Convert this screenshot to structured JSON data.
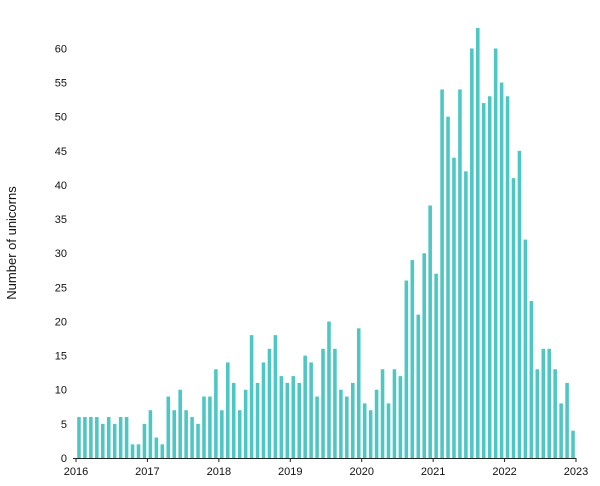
{
  "chart_data": {
    "type": "bar",
    "title": "",
    "xlabel": "",
    "ylabel": "Number of unicorns",
    "ylim": [
      0,
      63
    ],
    "yticks": [
      0,
      5,
      10,
      15,
      20,
      25,
      30,
      35,
      40,
      45,
      50,
      55,
      60
    ],
    "xticks": [
      "2016",
      "2017",
      "2018",
      "2019",
      "2020",
      "2021",
      "2022",
      "2023"
    ],
    "grid": false,
    "legend": "none",
    "bar_color": "#4cc7c3",
    "series": [
      {
        "values": [
          6,
          6,
          6,
          6,
          5,
          6,
          5,
          6,
          6,
          2,
          2,
          5,
          7,
          3,
          2,
          9,
          7,
          10,
          7,
          6,
          5,
          9,
          9,
          13,
          7,
          14,
          11,
          7,
          10,
          18,
          11,
          14,
          16,
          18,
          12,
          11,
          12,
          11,
          15,
          14,
          9,
          16,
          20,
          16,
          10,
          9,
          11,
          19,
          8,
          7,
          10,
          13,
          8,
          13,
          12,
          26,
          29,
          21,
          30,
          37,
          27,
          54,
          50,
          44,
          54,
          42,
          60,
          63,
          52,
          53,
          60,
          55,
          53,
          41,
          45,
          32,
          23,
          13,
          16,
          16,
          13,
          8,
          11,
          4
        ]
      }
    ]
  }
}
